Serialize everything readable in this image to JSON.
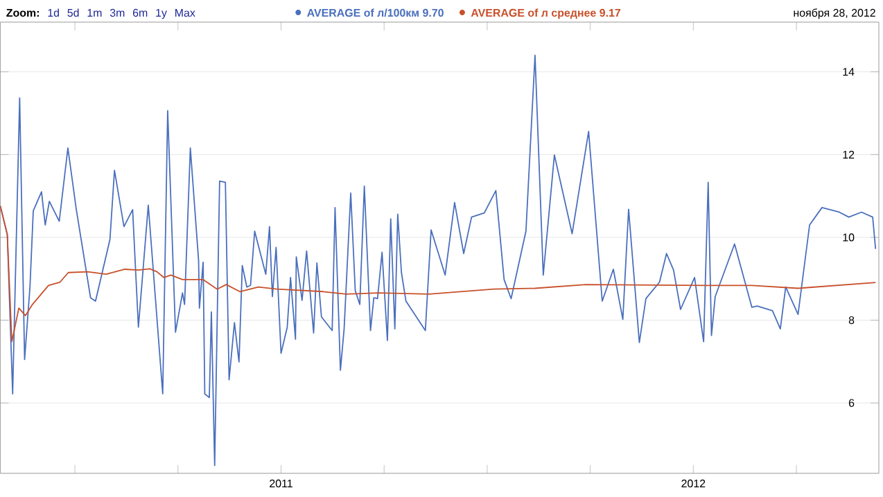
{
  "chart_data": {
    "type": "line",
    "annotations": [
      "Zoom:",
      "1d",
      "5d",
      "1m",
      "3m",
      "6m",
      "1y",
      "Max",
      "ноября 28, 2012"
    ],
    "legend": "top",
    "grid": "y",
    "marker": "none",
    "line_style": "solid",
    "xlim": [
      2010.819,
      2012.95
    ],
    "ylim": [
      4.3,
      15.2
    ],
    "xticks": [
      {
        "value": 2011,
        "label": null
      },
      {
        "value": 2011.25,
        "label": null
      },
      {
        "value": 2011.5,
        "label": "2011"
      },
      {
        "value": 2011.75,
        "label": null
      },
      {
        "value": 2012,
        "label": null
      },
      {
        "value": 2012.25,
        "label": null
      },
      {
        "value": 2012.5,
        "label": "2012"
      },
      {
        "value": 2012.75,
        "label": null
      }
    ],
    "yticks": [
      6,
      8,
      10,
      12,
      14
    ],
    "series": [
      {
        "name": "AVERAGE of л/100км 9.70",
        "color": "#4a6fbd",
        "x": [
          2010.819,
          2010.836,
          2010.849,
          2010.866,
          2010.878,
          2010.891,
          2010.899,
          2010.919,
          2010.928,
          2010.938,
          2010.962,
          2010.983,
          2011.003,
          2011.038,
          2011.05,
          2011.085,
          2011.096,
          2011.119,
          2011.14,
          2011.154,
          2011.178,
          2011.213,
          2011.225,
          2011.244,
          2011.261,
          2011.266,
          2011.28,
          2011.3,
          2011.302,
          2011.311,
          2011.315,
          2011.326,
          2011.331,
          2011.339,
          2011.351,
          2011.365,
          2011.374,
          2011.387,
          2011.398,
          2011.406,
          2011.417,
          2011.426,
          2011.436,
          2011.463,
          2011.472,
          2011.479,
          2011.488,
          2011.5,
          2011.515,
          2011.523,
          2011.535,
          2011.537,
          2011.551,
          2011.562,
          2011.579,
          2011.587,
          2011.598,
          2011.624,
          2011.631,
          2011.644,
          2011.653,
          2011.669,
          2011.68,
          2011.691,
          2011.702,
          2011.717,
          2011.725,
          2011.734,
          2011.745,
          2011.758,
          2011.766,
          2011.776,
          2011.783,
          2011.792,
          2011.803,
          2011.85,
          2011.864,
          2011.898,
          2011.921,
          2011.943,
          2011.962,
          2011.993,
          2012.021,
          2012.041,
          2012.058,
          2012.094,
          2012.116,
          2012.136,
          2012.163,
          2012.206,
          2012.246,
          2012.279,
          2012.306,
          2012.329,
          2012.343,
          2012.369,
          2012.385,
          2012.418,
          2012.435,
          2012.452,
          2012.469,
          2012.503,
          2012.525,
          2012.536,
          2012.544,
          2012.553,
          2012.6,
          2012.642,
          2012.655,
          2012.692,
          2012.711,
          2012.724,
          2012.754,
          2012.782,
          2012.812,
          2012.854,
          2012.877,
          2012.908,
          2012.935,
          2012.942
        ],
        "values": [
          10.76,
          10.07,
          6.22,
          13.37,
          7.05,
          8.8,
          10.64,
          11.1,
          10.3,
          10.87,
          10.39,
          12.16,
          10.7,
          8.54,
          8.46,
          9.95,
          11.62,
          10.26,
          10.67,
          7.83,
          10.78,
          6.22,
          13.06,
          7.71,
          8.66,
          8.38,
          12.16,
          9.44,
          8.29,
          9.4,
          6.22,
          6.13,
          8.2,
          4.49,
          11.36,
          11.33,
          6.56,
          7.94,
          6.99,
          9.32,
          8.8,
          8.84,
          10.15,
          9.11,
          10.26,
          8.57,
          9.76,
          7.2,
          7.83,
          9.03,
          7.54,
          9.53,
          8.48,
          9.67,
          7.69,
          9.38,
          8.08,
          7.75,
          10.72,
          6.79,
          7.79,
          11.07,
          8.71,
          8.38,
          11.24,
          7.75,
          8.54,
          8.52,
          9.64,
          7.51,
          10.45,
          7.79,
          10.56,
          9.15,
          8.46,
          7.75,
          10.18,
          9.09,
          10.84,
          9.61,
          10.49,
          10.59,
          11.13,
          8.98,
          8.52,
          10.15,
          14.4,
          9.09,
          11.99,
          10.09,
          12.56,
          8.46,
          9.23,
          8.02,
          10.68,
          7.46,
          8.52,
          8.92,
          9.61,
          9.21,
          8.26,
          9.03,
          7.48,
          11.33,
          7.63,
          8.57,
          9.84,
          8.31,
          8.34,
          8.23,
          7.79,
          8.8,
          8.14,
          10.3,
          10.72,
          10.61,
          10.49,
          10.61,
          10.49,
          9.72
        ]
      },
      {
        "name": "AVERAGE of л среднее 9.17",
        "color": "#c8502a",
        "x": [
          2010.819,
          2010.836,
          2010.847,
          2010.864,
          2010.88,
          2010.897,
          2010.936,
          2010.964,
          2010.984,
          2011.031,
          2011.076,
          2011.121,
          2011.154,
          2011.182,
          2011.199,
          2011.216,
          2011.233,
          2011.261,
          2011.311,
          2011.345,
          2011.367,
          2011.4,
          2011.445,
          2011.49,
          2011.602,
          2011.658,
          2011.736,
          2011.859,
          2012.016,
          2012.116,
          2012.239,
          2012.53,
          2012.642,
          2012.754,
          2012.942
        ],
        "values": [
          10.76,
          10.07,
          7.48,
          8.29,
          8.11,
          8.38,
          8.84,
          8.92,
          9.15,
          9.17,
          9.11,
          9.23,
          9.21,
          9.24,
          9.17,
          9.03,
          9.09,
          8.98,
          8.98,
          8.75,
          8.86,
          8.69,
          8.8,
          8.75,
          8.69,
          8.63,
          8.66,
          8.63,
          8.75,
          8.77,
          8.86,
          8.84,
          8.84,
          8.77,
          8.91
        ]
      }
    ]
  }
}
